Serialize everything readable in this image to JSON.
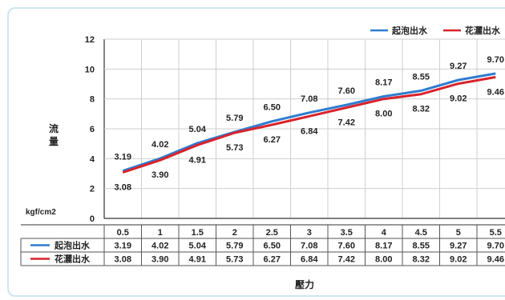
{
  "chart_data": {
    "type": "line",
    "title": "",
    "ylabel": "流量",
    "xlabel": "壓力",
    "unit_label": "kgf/cm2",
    "categories": [
      "0.5",
      "1",
      "1.5",
      "2",
      "2.5",
      "3",
      "3.5",
      "4",
      "4.5",
      "5",
      "5.5"
    ],
    "ylim": [
      0,
      12
    ],
    "yticks": [
      0,
      2,
      4,
      6,
      8,
      10,
      12
    ],
    "grid": true,
    "legend_position": "top-right",
    "series": [
      {
        "name": "起泡出水",
        "color": "#2f7ccf",
        "values": [
          3.19,
          4.02,
          5.04,
          5.79,
          6.5,
          7.08,
          7.6,
          8.17,
          8.55,
          9.27,
          9.7
        ],
        "labels": [
          "3.19",
          "4.02",
          "5.04",
          "5.79",
          "6.50",
          "7.08",
          "7.60",
          "8.17",
          "8.55",
          "9.27",
          "9.70"
        ]
      },
      {
        "name": "花灑出水",
        "color": "#d9232b",
        "values": [
          3.08,
          3.9,
          4.91,
          5.73,
          6.27,
          6.84,
          7.42,
          8.0,
          8.32,
          9.02,
          9.46
        ],
        "labels": [
          "3.08",
          "3.90",
          "4.91",
          "5.73",
          "6.27",
          "6.84",
          "7.42",
          "8.00",
          "8.32",
          "9.02",
          "9.46"
        ]
      }
    ]
  }
}
